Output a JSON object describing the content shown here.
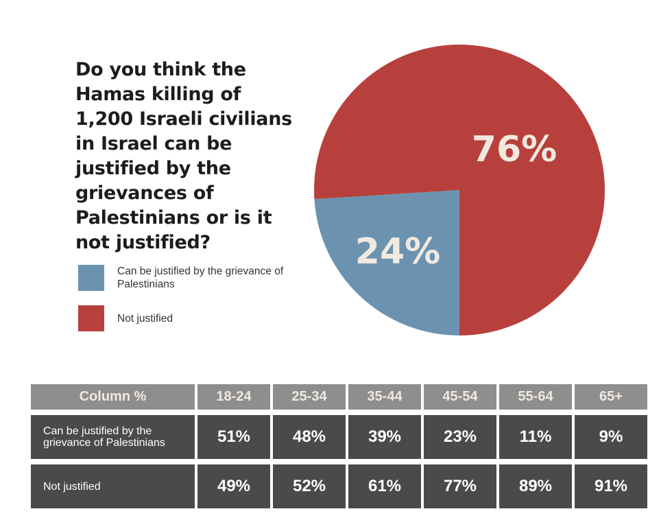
{
  "chart_data": [
    {
      "type": "pie",
      "title": "Do you think the Hamas killing of 1,200 Israeli civilians in Israel can be justified by the grievances of Palestinians or is it not justified?",
      "slices": [
        {
          "label": "Can be justified by the grievance of Palestinians",
          "value": 24,
          "display": "24%",
          "color": "#6b93b0"
        },
        {
          "label": "Not justified",
          "value": 76,
          "display": "76%",
          "color": "#b8403c"
        }
      ],
      "legend_position": "left"
    },
    {
      "type": "table",
      "header_label": "Column %",
      "columns": [
        "18-24",
        "25-34",
        "35-44",
        "45-54",
        "55-64",
        "65+"
      ],
      "rows": [
        {
          "label": "Can be justified by the grievance of Palestinians",
          "values": [
            "51%",
            "48%",
            "39%",
            "23%",
            "11%",
            "9%"
          ]
        },
        {
          "label": "Not justified",
          "values": [
            "49%",
            "52%",
            "61%",
            "77%",
            "89%",
            "91%"
          ]
        }
      ]
    }
  ]
}
